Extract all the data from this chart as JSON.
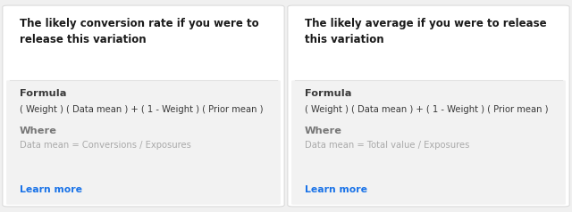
{
  "bg_color": "#f0f0f0",
  "card_bg": "#ffffff",
  "inner_bg": "#f2f2f2",
  "card_border": "#d8d8d8",
  "divider_color": "#e0e0e0",
  "cards": [
    {
      "title": "The likely conversion rate if you were to\nrelease this variation",
      "formula_label": "Formula",
      "formula_text": "( Weight ) ( Data mean ) + ( 1 - Weight ) ( Prior mean )",
      "where_label": "Where",
      "where_text": "Data mean = Conversions / Exposures",
      "link_text": "Learn more"
    },
    {
      "title": "The likely average if you were to release\nthis variation",
      "formula_label": "Formula",
      "formula_text": "( Weight ) ( Data mean ) + ( 1 - Weight ) ( Prior mean )",
      "where_label": "Where",
      "where_text": "Data mean = Total value / Exposures",
      "link_text": "Learn more"
    }
  ],
  "title_color": "#1a1a1a",
  "formula_label_color": "#3a3a3a",
  "formula_text_color": "#3a3a3a",
  "where_label_color": "#777777",
  "where_text_color": "#aaaaaa",
  "link_color": "#1a73e8",
  "title_fontsize": 8.5,
  "formula_label_fontsize": 8.2,
  "formula_text_fontsize": 7.2,
  "where_label_fontsize": 8.2,
  "where_text_fontsize": 7.2,
  "link_fontsize": 7.8,
  "fig_width": 6.4,
  "fig_height": 2.38,
  "dpi": 100
}
